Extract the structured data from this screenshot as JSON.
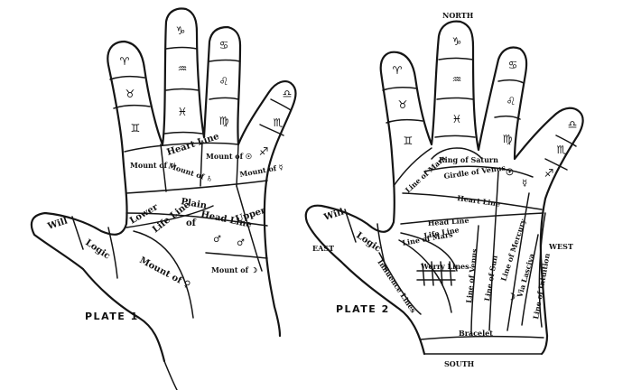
{
  "plate1": {
    "caption": "PLATE 1",
    "signs": {
      "index_top": "♈",
      "index_mid": "♉",
      "index_low": "♊",
      "middle_top": "♑",
      "middle_mid": "♒",
      "middle_low": "♓",
      "ring_top": "♋",
      "ring_mid": "♌",
      "ring_low": "♍",
      "little_top": "♎",
      "little_mid": "♏",
      "little_low": "♐"
    },
    "labels": {
      "mount_jupiter": "Mount of ♃",
      "mount_saturn": "Mount of ♄",
      "mount_sun": "Mount of ☉",
      "mount_mercury": "Mount of ☿",
      "heart_line": "Heart Line",
      "plain": "Plain",
      "of": "of",
      "mars_symbol": "♂",
      "head_line": "Head Line",
      "lower": "Lower",
      "upper": "Upper",
      "life_line": "Life Line",
      "mount_venus": "Mount of ♀",
      "mount_moon": "Mount of ☽",
      "will": "Will",
      "logic": "Logic",
      "mars_symbol_upper": "♂"
    }
  },
  "plate2": {
    "caption": "PLATE 2",
    "directions": {
      "north": "NORTH",
      "south": "SOUTH",
      "east": "EAST",
      "west": "WEST"
    },
    "signs": {
      "index_top": "♈",
      "index_mid": "♉",
      "index_low": "♊",
      "middle_top": "♑",
      "middle_mid": "♒",
      "middle_low": "♓",
      "ring_top": "♋",
      "ring_mid": "♌",
      "ring_low": "♍",
      "little_top": "♎",
      "little_mid": "♏",
      "little_low": "♐"
    },
    "labels": {
      "ring_of_saturn": "Ring of Saturn",
      "line_of_mars": "Line of Mars",
      "girdle_of_venus": "Girdle of Venus",
      "heart_line": "Heart Line",
      "life_line_upper": "Life Line",
      "head_line": "Head Line",
      "life_line": "Life Line",
      "line_of_mars_lower": "Line of Mars",
      "influence_lines": "Influence Lines",
      "worry_lines": "Worry Lines",
      "line_of_venus": "Line of Venus",
      "line_of_sun": "Line of Sun",
      "line_of_mercury": "Line of Mercury",
      "via_lasciva": "Via Lasciva",
      "line_of_intuition": "Line of Intuition",
      "sun_symbol": "☉",
      "mercury_symbol": "☿",
      "moon_symbol": "☽",
      "will": "Will",
      "logic": "Logic",
      "bracelet": "Bracelet"
    }
  }
}
